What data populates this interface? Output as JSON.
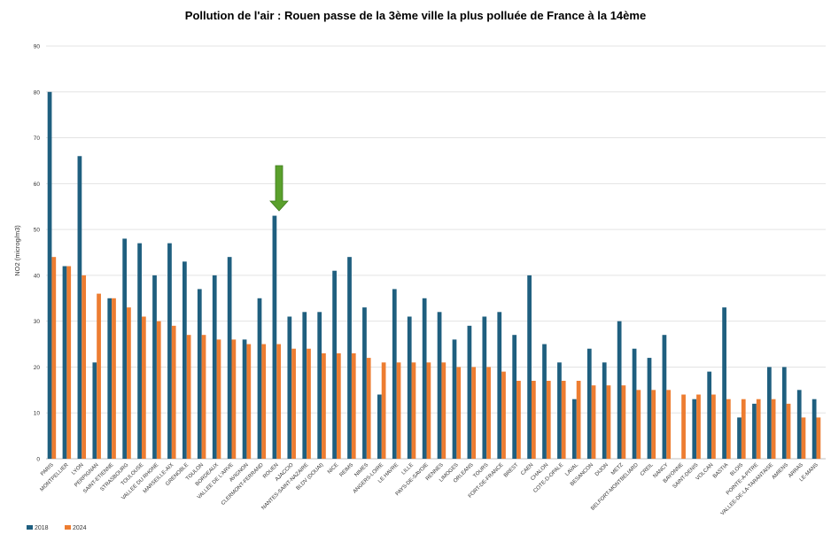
{
  "chart_data": {
    "type": "bar",
    "title": "Pollution de l'air : Rouen passe de la 3ème ville la plus polluée de France à la 14ème",
    "xlabel": "",
    "ylabel": "NO2 (microg/m3)",
    "ylim": [
      0,
      90
    ],
    "yticks": [
      0,
      10,
      20,
      30,
      40,
      50,
      60,
      70,
      80,
      90
    ],
    "grid": true,
    "legend_position": "bottom-left",
    "highlight": {
      "category": "ROUEN",
      "marker": "green-down-arrow",
      "color": "#5aa02c"
    },
    "categories": [
      "PARIS",
      "MONTPELLIER",
      "LYON",
      "PERPIGNAN",
      "SAINT-ETIENNE",
      "STRASBOURG",
      "TOULOUSE",
      "VALLEE DU RHONE",
      "MARSEILLE-AIX",
      "GRENOBLE",
      "TOULON",
      "BORDEAUX",
      "VALLEE DE L'ARVE",
      "AVIGNON",
      "CLERMONT-FERRAND",
      "ROUEN",
      "AJACCIO",
      "NANTES-SAINT-NAZAIRE",
      "BLDV (DOUAI)",
      "NICE",
      "REIMS",
      "NIMES",
      "ANGERS-LOIRE",
      "LE HAVRE",
      "LILLE",
      "PAYS-DE-SAVOIE",
      "RENNES",
      "LIMOGES",
      "ORLEANS",
      "TOURS",
      "FORT-DE-FRANCE",
      "BREST",
      "CAEN",
      "CHALON",
      "COTE-D-OPALE",
      "LAVAL",
      "BESANCON",
      "DIJON",
      "METZ",
      "BELFORT-MONTBELIARD",
      "CREIL",
      "NANCY",
      "BAYONNE",
      "SAINT-DENIS",
      "VOLCAN",
      "BASTIA",
      "BLOIS",
      "POINTE-A-PITRE",
      "VALLEE-DE-LA-TARANTAISE",
      "AMIENS",
      "ARRAS",
      "LE-MANS"
    ],
    "series": [
      {
        "name": "2018",
        "color": "#1f5f7f",
        "values": [
          80,
          42,
          66,
          21,
          35,
          48,
          47,
          40,
          47,
          43,
          37,
          40,
          44,
          26,
          35,
          53,
          31,
          32,
          32,
          41,
          44,
          33,
          14,
          37,
          31,
          35,
          32,
          26,
          29,
          31,
          32,
          27,
          40,
          25,
          21,
          13,
          24,
          21,
          30,
          24,
          22,
          27,
          null,
          13,
          19,
          33,
          9,
          12,
          20,
          20,
          15,
          13
        ]
      },
      {
        "name": "2024",
        "color": "#ed7d31",
        "values": [
          44,
          42,
          40,
          36,
          35,
          33,
          31,
          30,
          29,
          27,
          27,
          26,
          26,
          25,
          25,
          25,
          24,
          24,
          23,
          23,
          23,
          22,
          21,
          21,
          21,
          21,
          21,
          20,
          20,
          20,
          19,
          17,
          17,
          17,
          17,
          17,
          16,
          16,
          16,
          15,
          15,
          15,
          14,
          14,
          14,
          13,
          13,
          13,
          13,
          12,
          9,
          9
        ]
      }
    ]
  }
}
